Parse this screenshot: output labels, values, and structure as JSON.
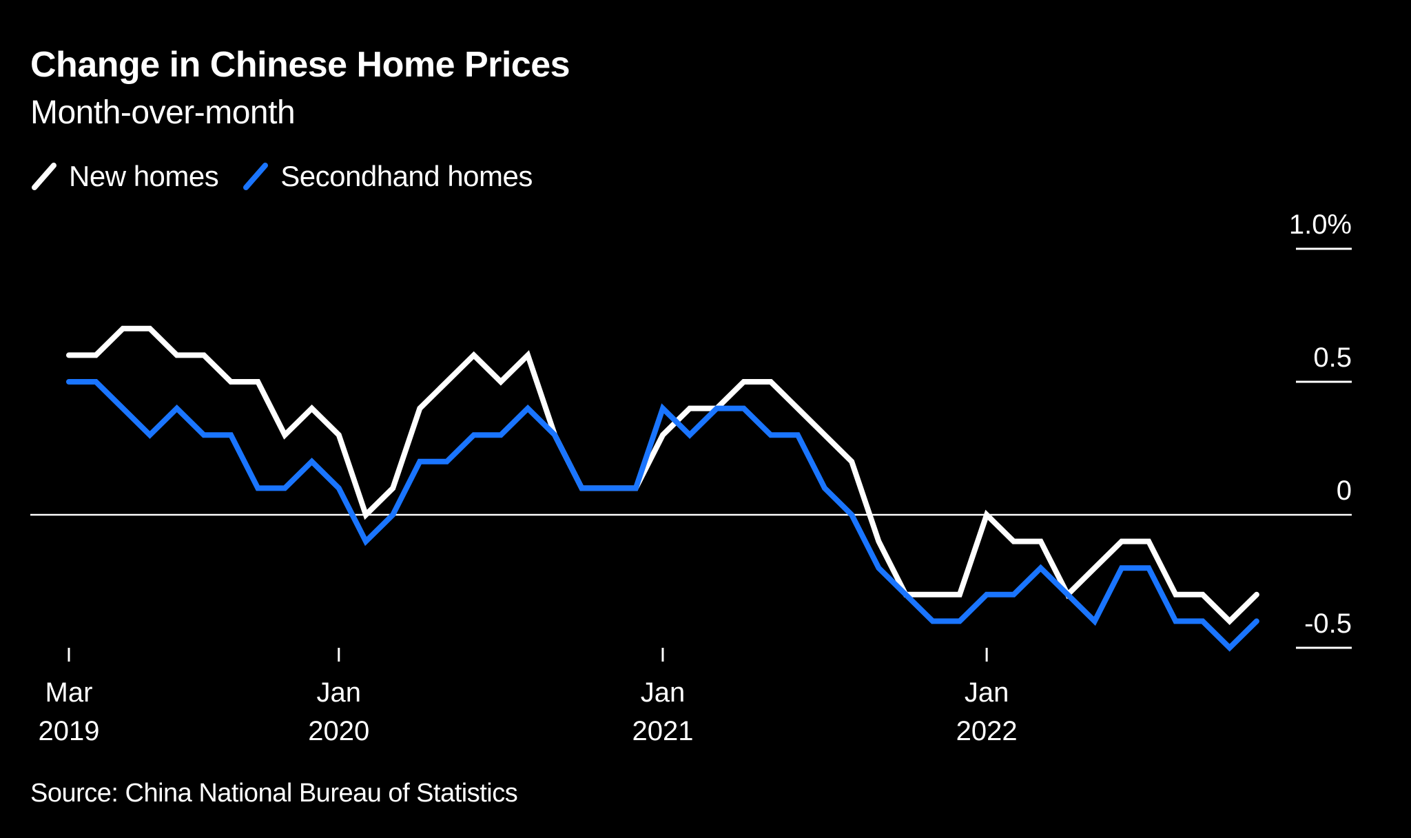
{
  "title": "Change in Chinese Home Prices",
  "subtitle": "Month-over-month",
  "source": "Source: China National Bureau of Statistics",
  "legend": [
    {
      "label": "New homes",
      "color": "#ffffff"
    },
    {
      "label": "Secondhand homes",
      "color": "#1a75ff"
    }
  ],
  "chart_data": {
    "type": "line",
    "title": "Change in Chinese Home Prices",
    "subtitle": "Month-over-month",
    "xlabel": "",
    "ylabel": "",
    "x_start": "2019-03",
    "x_end": "2022-11",
    "x_ticks": [
      {
        "month_index": 0,
        "line1": "Mar",
        "line2": "2019"
      },
      {
        "month_index": 10,
        "line1": "Jan",
        "line2": "2020"
      },
      {
        "month_index": 22,
        "line1": "Jan",
        "line2": "2021"
      },
      {
        "month_index": 34,
        "line1": "Jan",
        "line2": "2022"
      }
    ],
    "y_ticks": [
      {
        "value": 1.0,
        "label": "1.0%"
      },
      {
        "value": 0.5,
        "label": "0.5"
      },
      {
        "value": 0,
        "label": "0"
      },
      {
        "value": -0.5,
        "label": "-0.5"
      }
    ],
    "ylim": [
      -0.5,
      1.0
    ],
    "y_axis_position": "right",
    "grid": false,
    "zero_line": true,
    "legend_position": "top-left",
    "series": [
      {
        "name": "New homes",
        "color": "#ffffff",
        "values": [
          0.6,
          0.6,
          0.7,
          0.7,
          0.6,
          0.6,
          0.5,
          0.5,
          0.3,
          0.4,
          0.3,
          0.0,
          0.1,
          0.4,
          0.5,
          0.6,
          0.5,
          0.6,
          0.3,
          0.1,
          0.1,
          0.1,
          0.3,
          0.4,
          0.4,
          0.5,
          0.5,
          0.4,
          0.3,
          0.2,
          -0.1,
          -0.3,
          -0.3,
          -0.3,
          0.0,
          -0.1,
          -0.1,
          -0.3,
          -0.2,
          -0.1,
          -0.1,
          -0.3,
          -0.3,
          -0.4,
          -0.3
        ]
      },
      {
        "name": "Secondhand homes",
        "color": "#1a75ff",
        "values": [
          0.5,
          0.5,
          0.4,
          0.3,
          0.4,
          0.3,
          0.3,
          0.1,
          0.1,
          0.2,
          0.1,
          -0.1,
          0.0,
          0.2,
          0.2,
          0.3,
          0.3,
          0.4,
          0.3,
          0.1,
          0.1,
          0.1,
          0.4,
          0.3,
          0.4,
          0.4,
          0.3,
          0.3,
          0.1,
          0.0,
          -0.2,
          -0.3,
          -0.4,
          -0.4,
          -0.3,
          -0.3,
          -0.2,
          -0.3,
          -0.4,
          -0.2,
          -0.2,
          -0.4,
          -0.4,
          -0.5,
          -0.4
        ]
      }
    ]
  }
}
